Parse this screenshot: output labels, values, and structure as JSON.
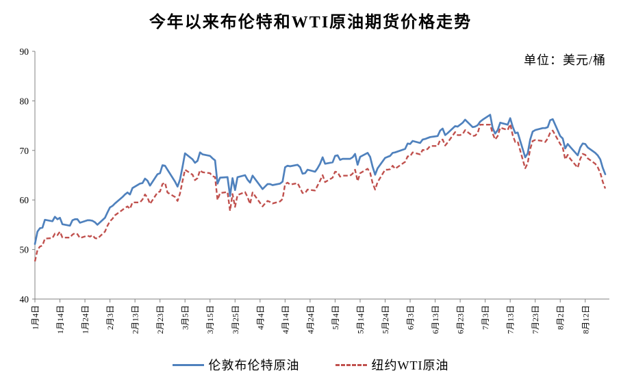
{
  "title": "今年以来布伦特和WTI原油期货价格走势",
  "unit_label": "单位：美元/桶",
  "chart_data": {
    "type": "line",
    "title": "今年以来布伦特和WTI原油期货价格走势",
    "unit": "美元/桶",
    "xlabel": "",
    "ylabel": "",
    "ylim": [
      40,
      90
    ],
    "yticks": [
      40,
      50,
      60,
      70,
      80,
      90
    ],
    "grid": false,
    "legend_position": "bottom",
    "x_axis_note": "daily futures settlement prices; x values are calendar-day offsets from 1月4日",
    "xtick_days": [
      0,
      10,
      20,
      30,
      40,
      50,
      60,
      70,
      80,
      90,
      100,
      110,
      120,
      130,
      140,
      150,
      160,
      170,
      180,
      190,
      200,
      210,
      220
    ],
    "xtick_labels": [
      "1月4日",
      "1月14日",
      "1月24日",
      "2月3日",
      "2月13日",
      "2月23日",
      "3月5日",
      "3月15日",
      "3月25日",
      "4月4日",
      "4月14日",
      "4月24日",
      "5月4日",
      "5月14日",
      "5月24日",
      "6月3日",
      "6月13日",
      "6月23日",
      "7月3日",
      "7月13日",
      "7月23日",
      "8月2日",
      "8月12日"
    ],
    "days": [
      0,
      1,
      2,
      3,
      4,
      7,
      8,
      9,
      10,
      11,
      14,
      15,
      16,
      17,
      18,
      21,
      22,
      23,
      24,
      25,
      28,
      29,
      30,
      31,
      32,
      35,
      36,
      37,
      38,
      39,
      42,
      43,
      44,
      45,
      46,
      49,
      50,
      51,
      52,
      53,
      56,
      57,
      58,
      59,
      60,
      63,
      64,
      65,
      66,
      67,
      70,
      71,
      72,
      73,
      74,
      77,
      78,
      79,
      80,
      81,
      84,
      85,
      86,
      87,
      91,
      92,
      93,
      94,
      95,
      98,
      99,
      100,
      101,
      102,
      105,
      106,
      107,
      108,
      109,
      112,
      113,
      114,
      115,
      116,
      119,
      120,
      121,
      122,
      123,
      126,
      127,
      128,
      129,
      130,
      133,
      134,
      135,
      136,
      137,
      140,
      141,
      142,
      143,
      144,
      148,
      149,
      150,
      151,
      154,
      155,
      156,
      157,
      158,
      161,
      162,
      163,
      164,
      165,
      168,
      169,
      170,
      171,
      172,
      175,
      176,
      177,
      178,
      179,
      182,
      183,
      184,
      185,
      186,
      189,
      190,
      191,
      192,
      193,
      196,
      197,
      198,
      199,
      200,
      203,
      204,
      205,
      206,
      207,
      210,
      211,
      212,
      213,
      214,
      217,
      218,
      219,
      220,
      221,
      224,
      225,
      226,
      227,
      228
    ],
    "series": [
      {
        "name": "伦敦布伦特原油",
        "color": "#4F81BD",
        "line_style": "solid",
        "values": [
          51.1,
          53.6,
          54.3,
          54.4,
          56.0,
          55.7,
          56.6,
          56.1,
          56.4,
          55.1,
          54.8,
          55.9,
          56.1,
          56.1,
          55.4,
          55.9,
          55.9,
          55.8,
          55.5,
          55.0,
          56.4,
          57.5,
          58.5,
          58.8,
          59.3,
          60.6,
          61.1,
          61.5,
          61.1,
          62.4,
          63.3,
          63.4,
          64.3,
          63.9,
          62.9,
          65.2,
          65.4,
          67.0,
          66.9,
          66.1,
          63.7,
          62.7,
          64.1,
          66.7,
          69.4,
          68.2,
          67.5,
          67.9,
          69.6,
          69.2,
          68.9,
          68.4,
          68.0,
          63.3,
          64.5,
          64.6,
          60.8,
          64.4,
          62.0,
          64.6,
          65.0,
          64.1,
          63.5,
          64.9,
          62.2,
          62.7,
          63.2,
          63.2,
          63.0,
          63.3,
          63.7,
          66.6,
          66.9,
          66.8,
          67.1,
          66.6,
          65.3,
          65.4,
          66.1,
          65.7,
          66.4,
          67.3,
          68.6,
          67.3,
          67.6,
          68.9,
          69.0,
          68.1,
          68.3,
          68.3,
          68.6,
          69.3,
          67.1,
          68.7,
          69.5,
          68.7,
          66.7,
          65.1,
          66.4,
          68.5,
          68.7,
          68.9,
          69.5,
          69.6,
          70.3,
          71.4,
          71.3,
          71.9,
          71.5,
          72.2,
          72.3,
          72.5,
          72.7,
          72.9,
          74.0,
          74.4,
          73.1,
          73.5,
          74.9,
          74.8,
          75.2,
          75.6,
          76.2,
          74.7,
          74.8,
          75.1,
          75.8,
          76.2,
          77.2,
          74.5,
          73.4,
          74.1,
          75.6,
          75.2,
          76.5,
          74.8,
          73.5,
          73.6,
          68.6,
          69.4,
          72.2,
          73.8,
          74.1,
          74.5,
          74.5,
          74.7,
          76.1,
          76.3,
          72.9,
          72.4,
          70.4,
          71.3,
          70.7,
          69.0,
          70.6,
          71.4,
          71.3,
          70.6,
          69.5,
          69.0,
          68.2,
          66.5,
          65.2
        ]
      },
      {
        "name": "纽约WTI原油",
        "color": "#C0504D",
        "line_style": "dashed",
        "values": [
          47.6,
          49.9,
          50.6,
          50.8,
          52.2,
          52.3,
          53.2,
          52.9,
          53.6,
          52.4,
          52.4,
          53.0,
          53.3,
          53.1,
          52.3,
          52.8,
          52.6,
          52.9,
          52.3,
          52.2,
          53.6,
          54.8,
          55.7,
          56.2,
          56.9,
          58.0,
          58.4,
          58.7,
          58.2,
          59.5,
          59.5,
          60.1,
          61.1,
          60.5,
          59.2,
          61.5,
          61.7,
          63.2,
          63.5,
          61.5,
          60.6,
          59.8,
          61.3,
          63.8,
          66.1,
          65.1,
          64.0,
          64.4,
          66.0,
          65.6,
          65.4,
          64.8,
          64.6,
          60.0,
          61.4,
          61.6,
          57.8,
          61.2,
          58.6,
          61.0,
          61.6,
          60.6,
          59.2,
          61.5,
          58.7,
          59.3,
          59.8,
          59.6,
          59.3,
          59.7,
          60.2,
          63.2,
          63.5,
          63.1,
          63.4,
          62.4,
          61.4,
          61.4,
          62.1,
          61.9,
          62.9,
          63.9,
          65.0,
          63.6,
          64.5,
          65.7,
          65.6,
          64.7,
          64.9,
          64.9,
          65.3,
          66.1,
          63.8,
          65.4,
          66.3,
          65.5,
          63.4,
          62.1,
          63.6,
          66.1,
          66.1,
          66.2,
          66.9,
          66.3,
          67.7,
          68.8,
          68.8,
          69.6,
          69.2,
          70.1,
          70.0,
          70.3,
          70.9,
          70.9,
          72.1,
          72.2,
          71.0,
          71.6,
          73.7,
          73.1,
          73.1,
          73.3,
          74.1,
          72.9,
          73.0,
          73.5,
          75.2,
          75.2,
          75.2,
          73.4,
          72.2,
          72.9,
          74.6,
          74.1,
          75.3,
          73.1,
          71.7,
          71.8,
          66.4,
          67.4,
          70.3,
          71.9,
          72.1,
          71.9,
          71.7,
          72.4,
          73.6,
          74.0,
          71.3,
          70.6,
          68.2,
          69.1,
          68.3,
          66.5,
          68.3,
          69.3,
          69.1,
          68.4,
          67.3,
          66.6,
          65.5,
          63.7,
          62.3
        ]
      }
    ]
  }
}
